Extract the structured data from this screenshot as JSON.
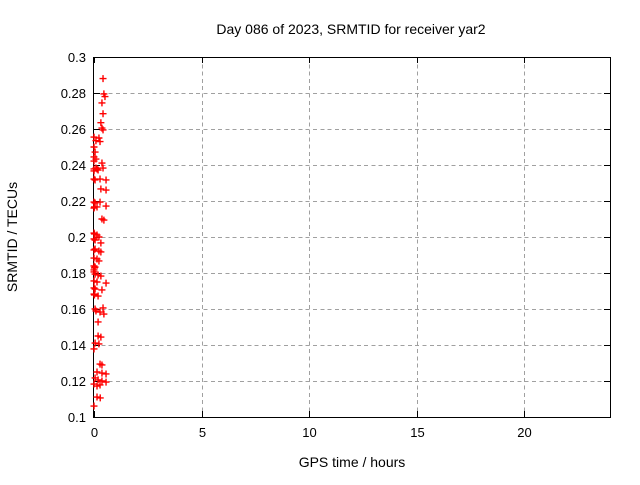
{
  "colors": {
    "background": "#ffffff",
    "border": "#000000",
    "grid": "#a0a0a0",
    "tick": "#000000",
    "text": "#000000",
    "marker": "#ff0000"
  },
  "chart_data": {
    "type": "scatter",
    "title": "Day 086 of 2023, SRMTID for receiver yar2",
    "xlabel": "GPS time / hours",
    "ylabel": "SRMTID / TECUs",
    "xlim": [
      0,
      24
    ],
    "ylim": [
      0.1,
      0.3
    ],
    "xtick_values": [
      0,
      5,
      10,
      15,
      20
    ],
    "xtick_labels": [
      "0",
      "5",
      "10",
      "15",
      "20"
    ],
    "ytick_values": [
      0.1,
      0.12,
      0.14,
      0.16,
      0.18,
      0.2,
      0.22,
      0.24,
      0.26,
      0.28,
      0.3
    ],
    "ytick_labels": [
      "0.1",
      "0.12",
      "0.14",
      "0.16",
      "0.18",
      "0.2",
      "0.22",
      "0.24",
      "0.26",
      "0.28",
      "0.3"
    ],
    "grid": true,
    "legend": "none",
    "marker_style": "plus",
    "marker_color": "#ff0000",
    "series": [
      {
        "name": "SRMTID",
        "points": [
          [
            0.42,
            0.288
          ],
          [
            0.46,
            0.2795
          ],
          [
            0.51,
            0.278
          ],
          [
            0.37,
            0.2745
          ],
          [
            0.42,
            0.2685
          ],
          [
            0.32,
            0.2635
          ],
          [
            0.37,
            0.2605
          ],
          [
            0.42,
            0.2595
          ],
          [
            0.0,
            0.2555
          ],
          [
            0.09,
            0.2535
          ],
          [
            0.23,
            0.255
          ],
          [
            0.28,
            0.253
          ],
          [
            0.0,
            0.25
          ],
          [
            0.05,
            0.2472
          ],
          [
            0.0,
            0.2445
          ],
          [
            0.09,
            0.2433
          ],
          [
            0.0,
            0.2422
          ],
          [
            0.37,
            0.2411
          ],
          [
            0.09,
            0.2383
          ],
          [
            0.0,
            0.2378
          ],
          [
            0.19,
            0.2372
          ],
          [
            0.0,
            0.2367
          ],
          [
            0.42,
            0.2383
          ],
          [
            0.14,
            0.2378
          ],
          [
            0.0,
            0.2322
          ],
          [
            0.05,
            0.2317
          ],
          [
            0.28,
            0.2322
          ],
          [
            0.56,
            0.2317
          ],
          [
            0.32,
            0.2267
          ],
          [
            0.56,
            0.2261
          ],
          [
            0.0,
            0.2194
          ],
          [
            0.05,
            0.2189
          ],
          [
            0.28,
            0.2194
          ],
          [
            0.0,
            0.2161
          ],
          [
            0.02,
            0.2167
          ],
          [
            0.56,
            0.2172
          ],
          [
            0.14,
            0.2167
          ],
          [
            0.37,
            0.21
          ],
          [
            0.46,
            0.2094
          ],
          [
            0.0,
            0.2022
          ],
          [
            0.02,
            0.2017
          ],
          [
            0.14,
            0.2011
          ],
          [
            0.23,
            0.2
          ],
          [
            0.0,
            0.1989
          ],
          [
            0.05,
            0.1983
          ],
          [
            0.32,
            0.1967
          ],
          [
            0.0,
            0.1928
          ],
          [
            0.05,
            0.1933
          ],
          [
            0.23,
            0.1922
          ],
          [
            0.32,
            0.1917
          ],
          [
            0.0,
            0.1883
          ],
          [
            0.14,
            0.1878
          ],
          [
            0.23,
            0.1867
          ],
          [
            0.0,
            0.1839
          ],
          [
            0.02,
            0.1828
          ],
          [
            0.05,
            0.1833
          ],
          [
            0.0,
            0.1817
          ],
          [
            0.0,
            0.1806
          ],
          [
            0.05,
            0.1794
          ],
          [
            0.19,
            0.1789
          ],
          [
            0.32,
            0.1783
          ],
          [
            0.0,
            0.1756
          ],
          [
            0.14,
            0.175
          ],
          [
            0.56,
            0.1744
          ],
          [
            0.0,
            0.1717
          ],
          [
            0.05,
            0.1711
          ],
          [
            0.37,
            0.1706
          ],
          [
            0.0,
            0.1683
          ],
          [
            0.02,
            0.1678
          ],
          [
            0.19,
            0.1672
          ],
          [
            0.42,
            0.1606
          ],
          [
            0.05,
            0.16
          ],
          [
            0.09,
            0.1589
          ],
          [
            0.28,
            0.1583
          ],
          [
            0.46,
            0.1572
          ],
          [
            0.19,
            0.1528
          ],
          [
            0.19,
            0.145
          ],
          [
            0.32,
            0.1444
          ],
          [
            0.05,
            0.1411
          ],
          [
            0.23,
            0.1406
          ],
          [
            0.0,
            0.1378
          ],
          [
            0.28,
            0.1294
          ],
          [
            0.37,
            0.1289
          ],
          [
            0.14,
            0.125
          ],
          [
            0.37,
            0.1244
          ],
          [
            0.56,
            0.1239
          ],
          [
            0.05,
            0.1217
          ],
          [
            0.19,
            0.1206
          ],
          [
            0.37,
            0.12
          ],
          [
            0.56,
            0.1194
          ],
          [
            0.0,
            0.1183
          ],
          [
            0.14,
            0.1172
          ],
          [
            0.28,
            0.1178
          ],
          [
            0.14,
            0.1111
          ],
          [
            0.29,
            0.1106
          ],
          [
            0.0,
            0.1061
          ]
        ]
      }
    ]
  }
}
